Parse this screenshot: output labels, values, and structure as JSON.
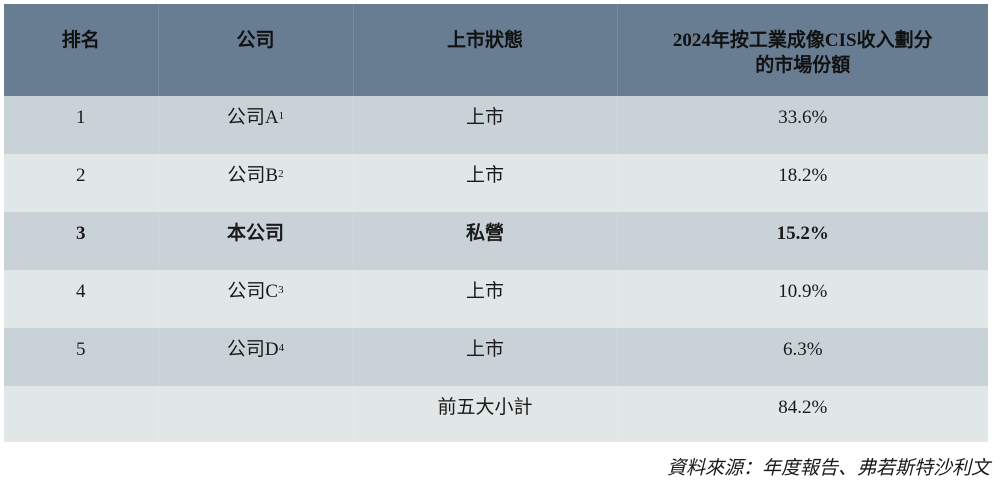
{
  "table": {
    "headers": [
      "排名",
      "公司",
      "上市狀態",
      "2024年按工業成像CIS收入劃分的市場份額"
    ],
    "header_lines": [
      "2024年按工業成像CIS收入劃分",
      "的市場份額"
    ],
    "rows": [
      {
        "rank": "1",
        "company": "公司A",
        "note": "1",
        "status": "上市",
        "share": "33.6%",
        "bold": false
      },
      {
        "rank": "2",
        "company": "公司B",
        "note": "2",
        "status": "上市",
        "share": "18.2%",
        "bold": false
      },
      {
        "rank": "3",
        "company": "本公司",
        "note": "",
        "status": "私營",
        "share": "15.2%",
        "bold": true
      },
      {
        "rank": "4",
        "company": "公司C",
        "note": "3",
        "status": "上市",
        "share": "10.9%",
        "bold": false
      },
      {
        "rank": "5",
        "company": "公司D",
        "note": "4",
        "status": "上市",
        "share": "6.3%",
        "bold": false
      }
    ],
    "subtotal": {
      "label": "前五大小計",
      "share": "84.2%"
    }
  },
  "source": "資料來源：年度報告、弗若斯特沙利文",
  "colors": {
    "header": "#687d92",
    "row_dark": "#c9d3d7",
    "row_light": "#e1e6e7"
  }
}
